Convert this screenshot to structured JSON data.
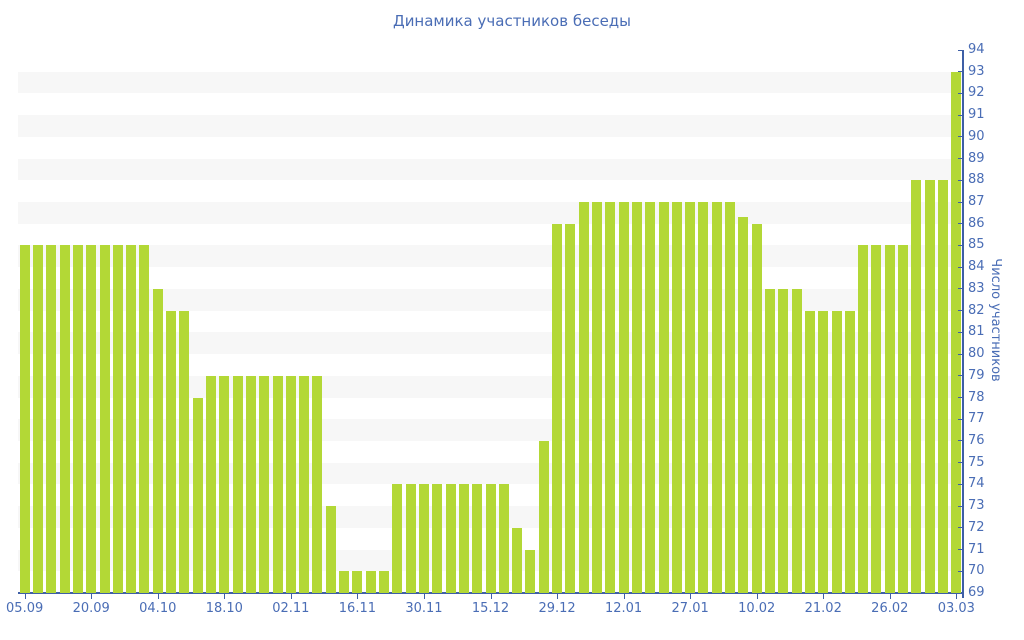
{
  "chart_data": {
    "type": "bar",
    "title": "Динамика участников беседы",
    "xlabel": "",
    "ylabel": "Число участников",
    "ylim": [
      69,
      94
    ],
    "y_tick_step": 1,
    "y_axis_side": "right",
    "grid": "alternating-horizontal-stripes",
    "legend": "none",
    "x_tick_labels": [
      "05.09",
      "20.09",
      "04.10",
      "18.10",
      "02.11",
      "16.11",
      "30.11",
      "15.12",
      "29.12",
      "12.01",
      "27.01",
      "10.02",
      "21.02",
      "26.02",
      "03.03"
    ],
    "x_tick_every_n_bars": 5,
    "values": [
      85,
      85,
      85,
      85,
      85,
      85,
      85,
      85,
      85,
      85,
      83,
      82,
      82,
      78,
      79,
      79,
      79,
      79,
      79,
      79,
      79,
      79,
      79,
      73,
      70,
      70,
      70,
      70,
      74,
      74,
      74,
      74,
      74,
      74,
      74,
      74,
      74,
      72,
      71,
      76,
      86,
      86,
      87,
      87,
      87,
      87,
      87,
      87,
      87,
      87,
      87,
      87,
      87,
      87,
      86.3,
      86,
      83,
      83,
      83,
      82,
      82,
      82,
      82,
      85,
      85,
      85,
      85,
      88,
      88,
      88,
      93
    ],
    "colors": {
      "bar": "#b3d836",
      "axis_line": "#3e5fa6",
      "tick_label": "#4a6db5",
      "title": "#4a6db5",
      "stripe": "#f7f7f7",
      "background": "#ffffff"
    }
  }
}
